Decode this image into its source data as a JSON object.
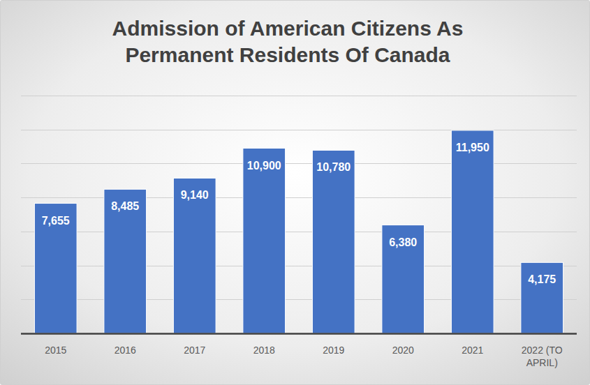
{
  "chart_data": {
    "type": "bar",
    "title": "Admission of American Citizens As Permanent Residents Of Canada",
    "categories": [
      "2015",
      "2016",
      "2017",
      "2018",
      "2019",
      "2020",
      "2021",
      "2022 (TO APRIL)"
    ],
    "values": [
      7655,
      8485,
      9140,
      10900,
      10780,
      6380,
      11950,
      4175
    ],
    "value_labels": [
      "7,655",
      "8,485",
      "9,140",
      "10,900",
      "10,780",
      "6,380",
      "11,950",
      "4,175"
    ],
    "color": "#4472c4",
    "ylim": [
      0,
      14000
    ],
    "yticks": [
      0,
      2000,
      4000,
      6000,
      8000,
      10000,
      12000,
      14000
    ],
    "grid": true,
    "data_labels": true,
    "tick_labels": "x"
  }
}
